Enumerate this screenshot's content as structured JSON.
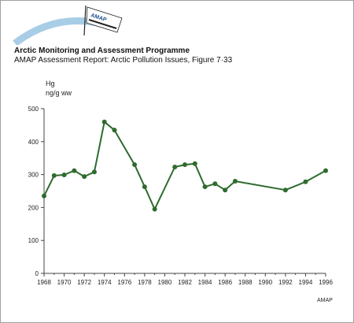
{
  "header": {
    "organization": "Arctic Monitoring and Assessment Programme",
    "report": "AMAP Assessment Report: Arctic Pollution Issues, Figure 7·33",
    "logo_text": "AMAP"
  },
  "credit": "AMAP",
  "colors": {
    "series": "#2e6b2e",
    "logo_arc": "#a8cde6",
    "axis": "#444444"
  },
  "chart_data": {
    "type": "line",
    "ylabel_line1": "Hg",
    "ylabel_line2": "ng/g ww",
    "xlim": [
      1968,
      1996
    ],
    "ylim": [
      0,
      500
    ],
    "xticks": [
      1968,
      1970,
      1972,
      1974,
      1976,
      1978,
      1980,
      1982,
      1984,
      1986,
      1988,
      1990,
      1992,
      1994,
      1996
    ],
    "yticks": [
      0,
      100,
      200,
      300,
      400,
      500
    ],
    "series": [
      {
        "x": [
          1968,
          1969,
          1970,
          1971,
          1972,
          1973,
          1974,
          1975,
          1977,
          1978,
          1979,
          1981,
          1982,
          1983,
          1984,
          1985,
          1986,
          1987,
          1992,
          1994,
          1996
        ],
        "values": [
          235,
          297,
          299,
          312,
          294,
          308,
          460,
          435,
          330,
          263,
          195,
          323,
          330,
          333,
          263,
          272,
          253,
          280,
          253,
          278,
          312
        ]
      }
    ],
    "grid": false,
    "legend": "none"
  }
}
